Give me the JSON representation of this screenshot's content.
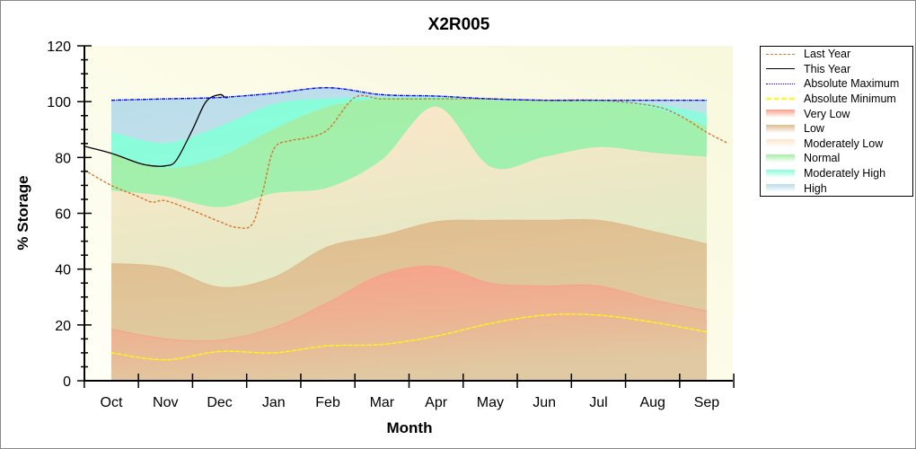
{
  "chart_data": {
    "type": "area",
    "title": "X2R005",
    "xlabel": "Month",
    "ylabel": "% Storage",
    "ylim": [
      0,
      120
    ],
    "yticks": [
      0,
      20,
      40,
      60,
      80,
      100,
      120
    ],
    "categories": [
      "Oct",
      "Nov",
      "Dec",
      "Jan",
      "Feb",
      "Mar",
      "Apr",
      "May",
      "Jun",
      "Jul",
      "Aug",
      "Sep"
    ],
    "grid": false,
    "legend_position": "right",
    "bands": [
      {
        "name": "High",
        "color": "#b9dcea",
        "top": [
          100.5,
          101,
          101.5,
          103,
          105,
          102.5,
          102,
          101,
          100.5,
          100.5,
          100.5,
          100.5
        ]
      },
      {
        "name": "Moderately High",
        "color": "#86ffd9",
        "top": [
          89,
          85,
          91,
          99,
          101,
          101.5,
          101.5,
          101,
          100.5,
          100.5,
          99,
          95.5
        ]
      },
      {
        "name": "Normal",
        "color": "#a5eea5",
        "top": [
          81,
          76,
          80,
          90,
          98,
          101,
          101,
          101,
          100.5,
          100,
          97.5,
          91
        ]
      },
      {
        "name": "Moderately Low",
        "color": "#ffe6cc",
        "top": [
          68,
          66,
          62,
          67,
          69,
          79,
          98,
          76.5,
          80,
          83.5,
          81.5,
          80
        ]
      },
      {
        "name": "Low",
        "color": "#dfbb8c",
        "top": [
          42,
          40.5,
          33.5,
          37,
          48,
          52,
          57,
          57.5,
          57.5,
          57.5,
          53.5,
          49
        ]
      },
      {
        "name": "Very Low",
        "color": "#f9a089",
        "top": [
          18.5,
          15,
          14.5,
          19,
          28,
          38,
          41,
          35,
          34,
          34,
          29,
          25
        ]
      }
    ],
    "series": [
      {
        "name": "Last Year",
        "color": "#d2782d",
        "style": "dashed",
        "x": [
          -0.5,
          0,
          0.5,
          0.75,
          1,
          1.5,
          2,
          2.3,
          2.6,
          2.8,
          3,
          3.3,
          3.6,
          4,
          4.5,
          5,
          6,
          7,
          8,
          9,
          10,
          10.5,
          11,
          11.4
        ],
        "values": [
          75.5,
          70,
          66,
          64,
          64.5,
          61,
          57,
          55,
          56,
          68,
          83,
          86,
          87,
          90,
          101.5,
          101,
          101,
          101,
          100.5,
          100.5,
          98.5,
          95,
          89,
          85
        ]
      },
      {
        "name": "This Year",
        "color": "#000000",
        "style": "solid",
        "x": [
          -0.5,
          0,
          0.5,
          0.75,
          1,
          1.2,
          1.5,
          1.75,
          2,
          2.1,
          2.15
        ],
        "values": [
          84,
          81.5,
          78,
          77,
          77,
          79,
          90,
          100,
          102.5,
          101.5,
          101.5
        ]
      },
      {
        "name": "Absolute Maximum",
        "color": "#0000ff",
        "style": "dash-dot",
        "x": [
          0,
          1,
          2,
          3,
          4,
          5,
          6,
          7,
          8,
          9,
          10,
          11
        ],
        "values": [
          100.5,
          101,
          101.5,
          103,
          105,
          102.5,
          102,
          101,
          100.5,
          100.5,
          100.5,
          100.5
        ]
      },
      {
        "name": "Absolute Minimum",
        "color": "#ffff00",
        "style": "dash-dot",
        "x": [
          0,
          1,
          2,
          3,
          4,
          5,
          6,
          7,
          8,
          9,
          10,
          11
        ],
        "values": [
          10,
          7.5,
          10.5,
          10,
          12.5,
          13,
          16,
          20.5,
          23.5,
          23.5,
          21,
          17.5
        ]
      }
    ],
    "legend": [
      "Last Year",
      "This Year",
      "Absolute Maximum",
      "Absolute Minimum",
      "Very Low",
      "Low",
      "Moderately Low",
      "Normal",
      "Moderately High",
      "High"
    ]
  }
}
